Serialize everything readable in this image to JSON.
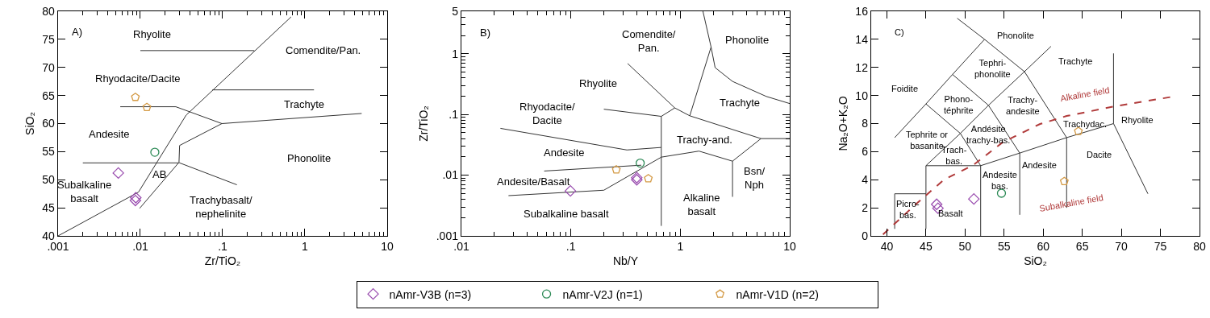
{
  "chart_data": [
    {
      "type": "scatter",
      "xlabel": "Zr/TiO₂",
      "ylabel": "SiO₂",
      "log": "x",
      "xlim": [
        0.001,
        10
      ],
      "xticks": [
        {
          "value": 0.001,
          "label": ".001"
        },
        {
          "value": 0.01,
          "label": ".01"
        },
        {
          "value": 0.1,
          "label": ".1"
        },
        1,
        10
      ],
      "ylim": [
        40,
        80
      ],
      "yticks": [
        40,
        45,
        50,
        55,
        60,
        65,
        70,
        75,
        80
      ],
      "series": [
        {
          "type": "line",
          "color": "#333333",
          "x": [
            0.001,
            0.0095,
            0.036,
            0.68
          ],
          "values": [
            40,
            47.8,
            61.5,
            79
          ]
        },
        {
          "type": "line",
          "color": "#333333",
          "x": [
            0.0098,
            0.0295,
            0.03,
            0.098,
            4.9
          ],
          "values": [
            44.9,
            53.1,
            56.1,
            60,
            61.8
          ]
        },
        {
          "type": "line",
          "color": "#333333",
          "x": [
            0.002,
            0.03,
            0.149
          ],
          "values": [
            53,
            53,
            49.1
          ]
        },
        {
          "type": "line",
          "color": "#333333",
          "x": [
            0.0057,
            0.027,
            0.098
          ],
          "values": [
            63,
            63,
            60
          ]
        },
        {
          "type": "line",
          "color": "#333333",
          "x": [
            0.01,
            0.243
          ],
          "values": [
            73,
            73
          ]
        },
        {
          "type": "line",
          "color": "#333333",
          "x": [
            0.075,
            1.29
          ],
          "values": [
            66,
            66
          ]
        },
        {
          "marker": "diamond",
          "color": "#9b4fb0",
          "x": [
            0.0054,
            0.0088,
            0.0087
          ],
          "values": [
            51.2,
            46.8,
            46.3
          ]
        },
        {
          "marker": "circle",
          "color": "#2e8b57",
          "x": [
            0.015
          ],
          "values": [
            54.9
          ]
        },
        {
          "color": "#d49a45",
          "x": [
            0.0087,
            0.012
          ],
          "values": [
            64.7,
            62.9
          ]
        }
      ],
      "annotations": [
        "A)",
        "Rhyolite",
        "Comendite/Pan.",
        "Rhyodacite/Dacite",
        "Trachyte",
        "Andesite",
        "Phonolite",
        "AB",
        "Subalkaline\nbasalt",
        "Trachybasalt/\nnephelinite"
      ]
    },
    {
      "type": "scatter",
      "xlabel": "Nb/Y",
      "ylabel": "Zr/TiO₂",
      "log": "xy",
      "legend": "bottom",
      "xlim": [
        0.01,
        10
      ],
      "xticks": [
        {
          "value": 0.01,
          "label": ".01"
        },
        {
          "value": 0.1,
          "label": ".1"
        },
        1,
        10
      ],
      "ylim": [
        0.001,
        5
      ],
      "yticks": [
        {
          "value": 0.001,
          "label": ".001"
        },
        {
          "value": 0.01,
          "label": ".01"
        },
        {
          "value": 0.1,
          "label": ".1"
        },
        1,
        5
      ],
      "series": [
        {
          "type": "line",
          "color": "#333333",
          "x": [
            0.33,
            0.89,
            1.22,
            5.46,
            10
          ],
          "values": [
            0.69,
            0.128,
            0.095,
            0.04,
            0.04
          ]
        },
        {
          "type": "line",
          "color": "#333333",
          "x": [
            1.61,
            1.91,
            1.22
          ],
          "values": [
            5,
            1.29,
            0.095
          ]
        },
        {
          "type": "line",
          "color": "#333333",
          "x": [
            1.91,
            2.08,
            3,
            6.1,
            10
          ],
          "values": [
            1.29,
            0.59,
            0.35,
            0.198,
            0.151
          ]
        },
        {
          "type": "line",
          "color": "#333333",
          "x": [
            0.2,
            0.67,
            0.89
          ],
          "values": [
            0.122,
            0.093,
            0.128
          ]
        },
        {
          "type": "line",
          "color": "#333333",
          "x": [
            0.67,
            0.67
          ],
          "values": [
            0.093,
            0.00146
          ]
        },
        {
          "type": "line",
          "color": "#333333",
          "x": [
            0.0227,
            0.325,
            0.67
          ],
          "values": [
            0.059,
            0.026,
            0.0286
          ]
        },
        {
          "type": "line",
          "color": "#333333",
          "x": [
            0.057,
            0.44
          ],
          "values": [
            0.0117,
            0.0146
          ]
        },
        {
          "type": "line",
          "color": "#333333",
          "x": [
            0.0269,
            0.2,
            0.67,
            1.48,
            3,
            5.46
          ],
          "values": [
            0.0046,
            0.00565,
            0.0198,
            0.0249,
            0.017,
            0.04
          ]
        },
        {
          "type": "line",
          "color": "#333333",
          "x": [
            3,
            3
          ],
          "values": [
            0.017,
            0.0044
          ]
        },
        {
          "name": "nAmr-V3B (n=3)",
          "marker": "diamond",
          "color": "#9b4fb0",
          "x": [
            0.099,
            0.4,
            0.4
          ],
          "values": [
            0.0055,
            0.0091,
            0.0084
          ]
        },
        {
          "name": "nAmr-V2J (n=1)",
          "marker": "circle",
          "color": "#2e8b57",
          "x": [
            0.43
          ],
          "values": [
            0.0158
          ]
        },
        {
          "name": "nAmr-V1D (n=2)",
          "color": "#d49a45",
          "x": [
            0.26,
            0.51
          ],
          "values": [
            0.0123,
            0.0088
          ]
        }
      ],
      "annotations": [
        "B)",
        "Comendite/\nPan.",
        "Phonolite",
        "Rhyolite",
        "Trachyte",
        "Rhyodacite/\nDacite",
        "Trachy-and.",
        "Andesite",
        "Bsn/\nNph",
        "Andesite/Basalt",
        "Alkaline\nbasalt",
        "Subalkaline basalt"
      ]
    },
    {
      "type": "scatter",
      "xlabel": "SiO₂",
      "ylabel": "Na₂O+K₂O",
      "xlim": [
        38,
        80
      ],
      "xticks": [
        40,
        45,
        50,
        55,
        60,
        65,
        70,
        75,
        80
      ],
      "ylim": [
        0,
        16
      ],
      "yticks": [
        0,
        2,
        4,
        6,
        8,
        10,
        12,
        14,
        16
      ],
      "series": [
        {
          "type": "line",
          "color": "#333333",
          "x": [
            41,
            41,
            45,
            45
          ],
          "values": [
            0.5,
            3,
            3,
            0.5
          ]
        },
        {
          "type": "line",
          "color": "#333333",
          "x": [
            41,
            45,
            48.4,
            52.5,
            49
          ],
          "values": [
            7,
            9.4,
            11.5,
            14,
            15.5
          ]
        },
        {
          "type": "line",
          "color": "#333333",
          "x": [
            52.5,
            57.6,
            63,
            63
          ],
          "values": [
            14,
            11.7,
            7,
            2
          ]
        },
        {
          "type": "line",
          "color": "#333333",
          "x": [
            45,
            49.4,
            52,
            52
          ],
          "values": [
            9.4,
            7.3,
            5,
            0
          ]
        },
        {
          "type": "line",
          "color": "#333333",
          "x": [
            48.4,
            53,
            57,
            57
          ],
          "values": [
            11.5,
            9.3,
            5.9,
            1.5
          ]
        },
        {
          "type": "line",
          "color": "#333333",
          "x": [
            45,
            45,
            49.4,
            53,
            57.6,
            61
          ],
          "values": [
            3,
            5,
            7.3,
            9.3,
            11.7,
            13.5
          ]
        },
        {
          "type": "line",
          "color": "#333333",
          "x": [
            45,
            52,
            57,
            63,
            69,
            73.4
          ],
          "values": [
            5,
            5,
            5.9,
            7,
            8,
            3
          ]
        },
        {
          "type": "line",
          "color": "#333333",
          "x": [
            69,
            69
          ],
          "values": [
            13,
            8
          ]
        },
        {
          "type": "line",
          "color": "#b03a3a",
          "line_style": "dashed",
          "x": [
            39.5,
            43.9,
            47.3,
            51.1,
            54.8,
            59.6,
            63,
            68.9,
            76.4
          ],
          "values": [
            0.1,
            2.35,
            4,
            5.06,
            6.66,
            7.97,
            8.54,
            9.2,
            9.9
          ]
        },
        {
          "marker": "diamond",
          "color": "#9b4fb0",
          "x": [
            46.37,
            46.54,
            51.13
          ],
          "values": [
            2.25,
            1.97,
            2.63
          ]
        },
        {
          "marker": "circle",
          "color": "#2e8b57",
          "x": [
            54.66
          ],
          "values": [
            3.04
          ]
        },
        {
          "color": "#d49a45",
          "x": [
            62.7,
            64.5
          ],
          "values": [
            3.88,
            7.45
          ]
        }
      ],
      "annotations": [
        "C)",
        "Phonolite",
        "Tephri-\nphonolite",
        "Trachyte",
        "Foidite",
        "Alkaline field",
        "Phono-\ntéphrite",
        "Trachy-\nandesite",
        "Trachydac.",
        "Rhyolite",
        "Tephrite or\nbasanite",
        "Andésite\ntrachy-bas.",
        "Trach-\nbas.",
        "Dacite",
        "Andesite",
        "Andesite\nbas.",
        "Subalkaline field",
        "Picro-\nbas.",
        "Basalt"
      ]
    }
  ]
}
